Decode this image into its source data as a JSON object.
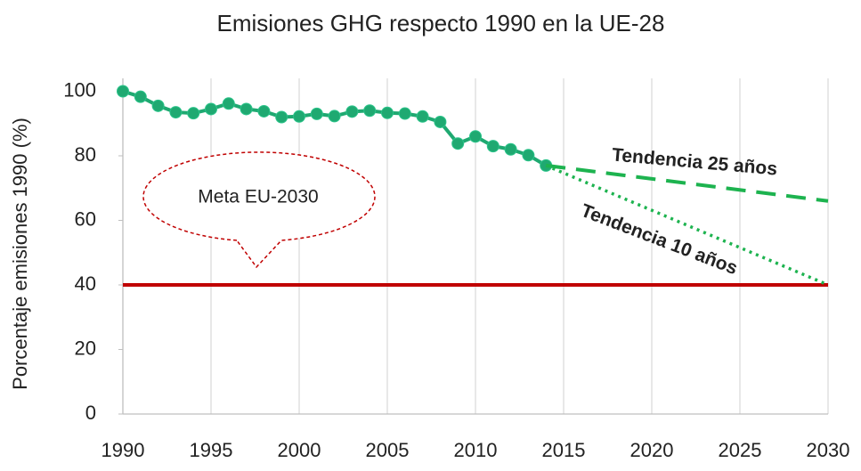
{
  "chart_data": {
    "type": "line",
    "title": "Emisiones GHG respecto 1990 en la UE-28",
    "ylabel": "Porcentaje emisiones 1990 (%)",
    "xlim": [
      1990,
      2030
    ],
    "xticks": [
      1990,
      1995,
      2000,
      2005,
      2010,
      2015,
      2020,
      2025,
      2030
    ],
    "ylim": [
      0,
      104
    ],
    "yticks": [
      0,
      20,
      40,
      60,
      80,
      100
    ],
    "grid": "x",
    "series": [
      {
        "color": "#1fa971",
        "style": "solid-markers",
        "x": [
          1990,
          1991,
          1992,
          1993,
          1994,
          1995,
          1996,
          1997,
          1998,
          1999,
          2000,
          2001,
          2002,
          2003,
          2004,
          2005,
          2006,
          2007,
          2008,
          2009,
          2010,
          2011,
          2012,
          2013,
          2014
        ],
        "values": [
          100,
          98.3,
          95.5,
          93.5,
          93.2,
          94.5,
          96.2,
          94.5,
          93.8,
          92,
          92.2,
          93,
          92.3,
          93.7,
          94,
          93.3,
          93.1,
          92.2,
          90.5,
          83.8,
          86,
          83,
          82,
          80.2,
          77
        ]
      },
      {
        "name": "Tendencia 25 años",
        "color": "#1db34f",
        "style": "dashed",
        "x": [
          2014,
          2030
        ],
        "values": [
          77,
          66
        ]
      },
      {
        "name": "Tendencia 10 años",
        "color": "#1db34f",
        "style": "dotted",
        "x": [
          2014,
          2030
        ],
        "values": [
          77,
          40
        ]
      }
    ],
    "target": {
      "label": "Meta EU-2030",
      "value": 40,
      "color": "#c00000"
    }
  }
}
